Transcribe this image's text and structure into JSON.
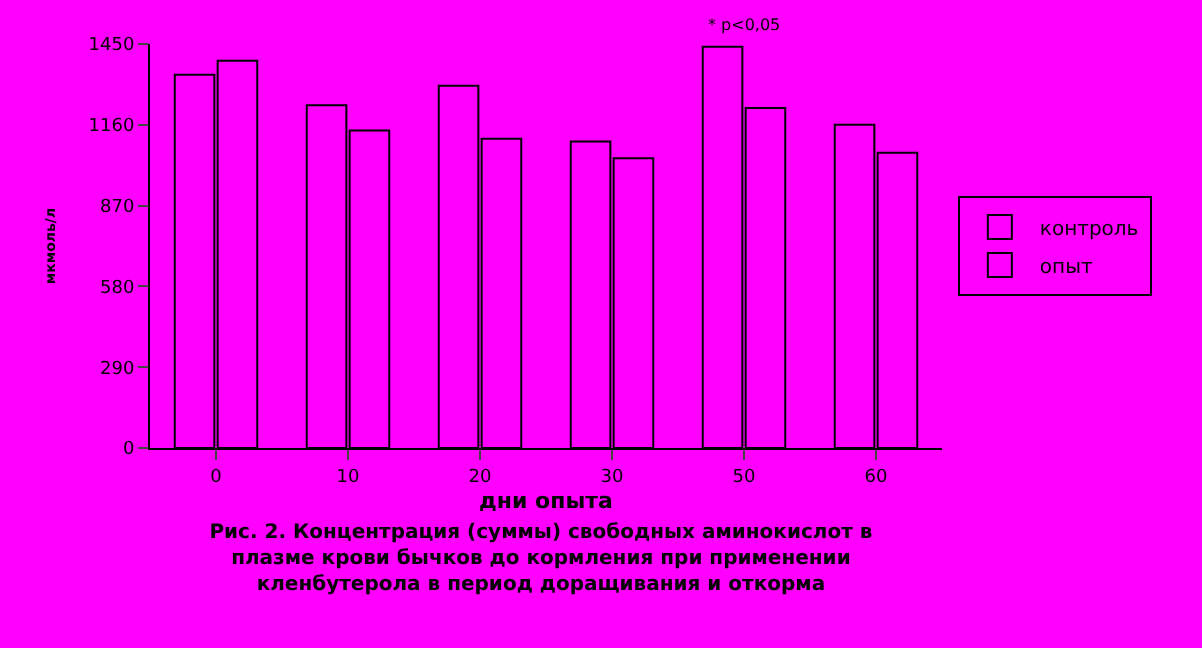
{
  "chart_data": {
    "type": "bar",
    "title": "Рис. 2. Концентрация (суммы) свободных аминокислот в\nплазме крови бычков до кормления при применении\nкленбутерола в период доращивания и откорма",
    "xlabel": "дни опыта",
    "ylabel": "мкмоль/л",
    "categories": [
      "0",
      "10",
      "20",
      "30",
      "50",
      "60"
    ],
    "series": [
      {
        "name": "контроль",
        "color": "#ff00ff",
        "values": [
          1340,
          1230,
          1300,
          1100,
          1440,
          1160
        ]
      },
      {
        "name": "опыт",
        "color": "#ff00ff",
        "values": [
          1390,
          1140,
          1110,
          1040,
          1220,
          1060
        ]
      }
    ],
    "ylim": [
      0,
      1450
    ],
    "yticks": [
      0,
      290,
      580,
      870,
      1160,
      1450
    ],
    "grid": false,
    "legend": "right",
    "annotations": [
      {
        "text": "* p<0,05",
        "x": "50",
        "y": 1440
      }
    ]
  }
}
